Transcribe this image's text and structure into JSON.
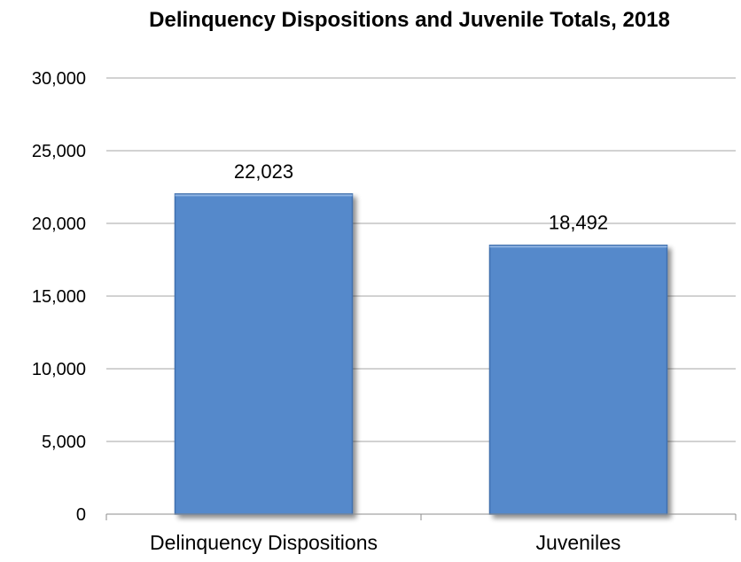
{
  "chart_data": {
    "type": "bar",
    "title": "Delinquency Dispositions and Juvenile Totals, 2018",
    "xlabel": "",
    "ylabel": "",
    "categories": [
      "Delinquency Dispositions",
      "Juveniles"
    ],
    "values": [
      22023,
      18492
    ],
    "data_labels": [
      "22,023",
      "18,492"
    ],
    "ylim": [
      0,
      30000
    ],
    "yticks": [
      0,
      5000,
      10000,
      15000,
      20000,
      25000,
      30000
    ],
    "ytick_labels": [
      "0",
      "5,000",
      "10,000",
      "15,000",
      "20,000",
      "25,000",
      "30,000"
    ],
    "grid": true,
    "legend": "none",
    "bar_color": "#5589cb",
    "bar_edge_color": "#3f6fae"
  }
}
